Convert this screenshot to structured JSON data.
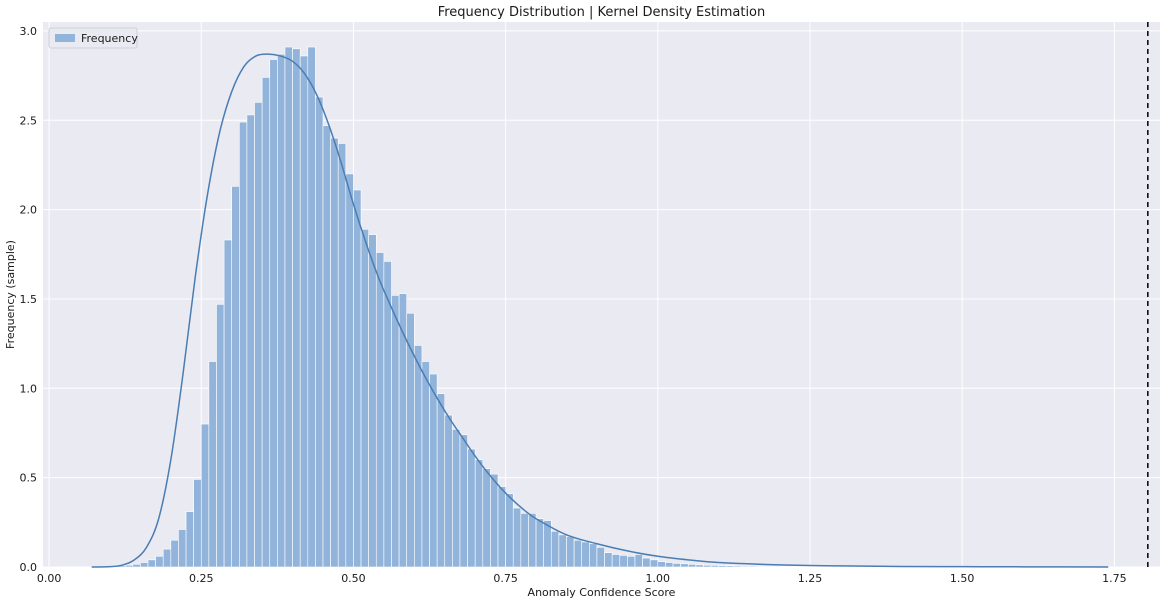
{
  "chart_data": {
    "type": "bar",
    "title": "Frequency Distribution | Kernel Density Estimation",
    "xlabel": "Anomaly Confidence Score",
    "ylabel": "Frequency (sample)",
    "xlim": [
      -0.01,
      1.825
    ],
    "ylim": [
      0,
      3.05
    ],
    "xticks": [
      0.0,
      0.25,
      0.5,
      0.75,
      1.0,
      1.25,
      1.5,
      1.75
    ],
    "xtick_labels": [
      "0.00",
      "0.25",
      "0.50",
      "0.75",
      "1.00",
      "1.25",
      "1.50",
      "1.75"
    ],
    "yticks": [
      0.0,
      0.5,
      1.0,
      1.5,
      2.0,
      2.5,
      3.0
    ],
    "ytick_labels": [
      "0.0",
      "0.5",
      "1.0",
      "1.5",
      "2.0",
      "2.5",
      "3.0"
    ],
    "grid": true,
    "legend": {
      "position": "top-left",
      "entries": [
        "Frequency"
      ]
    },
    "histogram": {
      "name": "Frequency",
      "color": "#92b4db",
      "bin_width": 0.0125,
      "bins_start": 0.075,
      "values": [
        0.002,
        0.004,
        0.006,
        0.008,
        0.01,
        0.015,
        0.025,
        0.04,
        0.06,
        0.1,
        0.15,
        0.21,
        0.31,
        0.49,
        0.8,
        1.15,
        1.47,
        1.83,
        2.13,
        2.49,
        2.53,
        2.6,
        2.74,
        2.84,
        2.87,
        2.91,
        2.9,
        2.86,
        2.91,
        2.63,
        2.47,
        2.4,
        2.37,
        2.2,
        2.11,
        1.89,
        1.86,
        1.76,
        1.71,
        1.52,
        1.53,
        1.42,
        1.24,
        1.15,
        1.08,
        0.97,
        0.85,
        0.77,
        0.74,
        0.66,
        0.6,
        0.55,
        0.52,
        0.45,
        0.41,
        0.33,
        0.3,
        0.3,
        0.27,
        0.26,
        0.2,
        0.18,
        0.17,
        0.15,
        0.14,
        0.13,
        0.11,
        0.08,
        0.07,
        0.065,
        0.06,
        0.07,
        0.05,
        0.04,
        0.03,
        0.025,
        0.02,
        0.018,
        0.015,
        0.012,
        0.01,
        0.009,
        0.008,
        0.007,
        0.006,
        0.005,
        0.005,
        0.004,
        0.004,
        0.004,
        0.003,
        0.003,
        0.003,
        0.003,
        0.002,
        0.002,
        0.002,
        0.002,
        0.002,
        0.002,
        0.002,
        0.001,
        0.001,
        0.001,
        0.001,
        0.001,
        0.001,
        0.001,
        0.001,
        0.001,
        0.001,
        0.001,
        0.001,
        0.001,
        0.001,
        0.001,
        0.001,
        0.001,
        0.001,
        0.001,
        0.001,
        0.001,
        0.001,
        0.001,
        0.001,
        0.001,
        0.001,
        0.001,
        0.001,
        0.001,
        0.001,
        0.001,
        0.001,
        0.001
      ]
    },
    "kde": {
      "color": "#4a7db3",
      "x": [
        0.07,
        0.1,
        0.12,
        0.14,
        0.16,
        0.18,
        0.2,
        0.22,
        0.24,
        0.26,
        0.28,
        0.3,
        0.32,
        0.34,
        0.36,
        0.38,
        0.4,
        0.42,
        0.44,
        0.46,
        0.48,
        0.5,
        0.52,
        0.54,
        0.56,
        0.58,
        0.6,
        0.62,
        0.64,
        0.66,
        0.68,
        0.7,
        0.72,
        0.74,
        0.76,
        0.78,
        0.8,
        0.85,
        0.9,
        0.95,
        1.0,
        1.05,
        1.1,
        1.2,
        1.3,
        1.4,
        1.5,
        1.6,
        1.74
      ],
      "y": [
        0.0,
        0.002,
        0.01,
        0.04,
        0.11,
        0.27,
        0.6,
        1.08,
        1.62,
        2.08,
        2.43,
        2.66,
        2.8,
        2.86,
        2.87,
        2.86,
        2.83,
        2.76,
        2.64,
        2.47,
        2.26,
        2.03,
        1.82,
        1.63,
        1.47,
        1.32,
        1.18,
        1.05,
        0.93,
        0.82,
        0.72,
        0.62,
        0.53,
        0.45,
        0.38,
        0.32,
        0.27,
        0.18,
        0.13,
        0.09,
        0.06,
        0.04,
        0.025,
        0.012,
        0.006,
        0.003,
        0.002,
        0.001,
        0.0
      ]
    },
    "threshold_line": {
      "x": 1.805,
      "style": "dashed",
      "color": "#000000"
    }
  }
}
